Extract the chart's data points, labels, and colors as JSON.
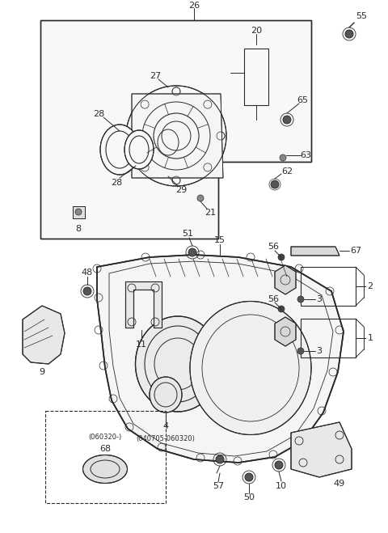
{
  "bg_color": "#ffffff",
  "line_color": "#2a2a2a",
  "figsize": [
    4.8,
    6.59
  ],
  "dpi": 100,
  "label_fontsize": 8,
  "small_fontsize": 6
}
